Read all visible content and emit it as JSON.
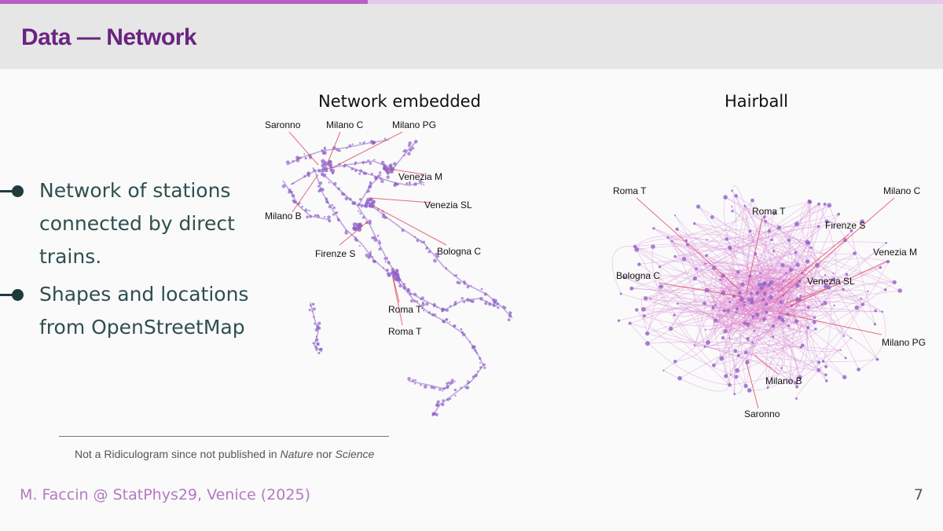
{
  "slide": {
    "title": "Data — Network",
    "progress_fraction": 0.39,
    "page_number": "7",
    "footer": "M. Faccin @ StatPhys29, Venice (2025)"
  },
  "bullets": [
    "Network of stations connected by direct trains.",
    "Shapes and locations from OpenStreetMap"
  ],
  "figures": {
    "embedded": {
      "title": "Network embedded",
      "labels": [
        "Saronno",
        "Milano C",
        "Milano PG",
        "Venezia M",
        "Venezia SL",
        "Milano B",
        "Firenze S",
        "Bologna C",
        "Roma T",
        "Roma T"
      ]
    },
    "hairball": {
      "title": "Hairball",
      "labels": [
        "Roma T",
        "Milano C",
        "Roma T",
        "Firenze S",
        "Venezia M",
        "Bologna C",
        "Venezia SL",
        "Milano PG",
        "Milano B",
        "Saronno"
      ]
    }
  },
  "footnote": {
    "prefix": "Not a Ridiculogram since not published in ",
    "journal1": "Nature",
    "middle": " nor ",
    "journal2": "Science"
  },
  "colors": {
    "accent": "#6a2481",
    "node": "#8e63c9",
    "hairball_edge": "#d68fd8",
    "leader": "#e0506a",
    "footer_text": "#b27ac0"
  }
}
